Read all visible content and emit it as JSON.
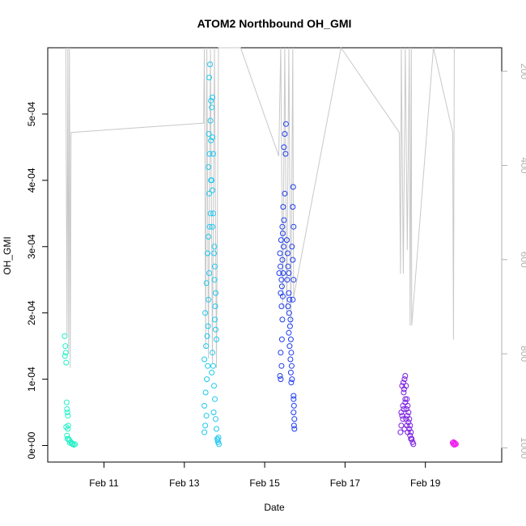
{
  "chart_data": {
    "type": "scatter",
    "title": "ATOM2 Northbound OH_GMI",
    "xlabel": "Date",
    "ylabel": "OH_GMI",
    "x_unit": "days (February)",
    "xlim": [
      9.6,
      20.9
    ],
    "ylim": [
      -2.5e-05,
      0.0006
    ],
    "x_ticks": [
      {
        "value": 11,
        "label": "Feb 11"
      },
      {
        "value": 13,
        "label": "Feb 13"
      },
      {
        "value": 15,
        "label": "Feb 15"
      },
      {
        "value": 17,
        "label": "Feb 17"
      },
      {
        "value": 19,
        "label": "Feb 19"
      }
    ],
    "y_ticks": [
      {
        "value": 0,
        "label": "0e+00"
      },
      {
        "value": 0.0001,
        "label": "1e-04"
      },
      {
        "value": 0.0002,
        "label": "2e-04"
      },
      {
        "value": 0.0003,
        "label": "3e-04"
      },
      {
        "value": 0.0004,
        "label": "4e-04"
      },
      {
        "value": 0.0005,
        "label": "5e-04"
      }
    ],
    "y2_ticks": [
      {
        "value": 200,
        "label": "200"
      },
      {
        "value": 400,
        "label": "400"
      },
      {
        "value": 600,
        "label": "600"
      },
      {
        "value": 800,
        "label": "800"
      },
      {
        "value": 1000,
        "label": "1000"
      }
    ],
    "y2lim": [
      1030,
      150
    ],
    "pressure_line_color": "#c8c8c8",
    "series": [
      {
        "color": "#22f0c8",
        "points": [
          [
            10.02,
            0.000165
          ],
          [
            10.04,
            0.00015
          ],
          [
            10.05,
            0.00014
          ],
          [
            10.06,
            0.000125
          ],
          [
            10.03,
            0.000135
          ],
          [
            10.07,
            6.5e-05
          ],
          [
            10.08,
            5.5e-05
          ],
          [
            10.09,
            5e-05
          ],
          [
            10.1,
            4.5e-05
          ],
          [
            10.11,
            3e-05
          ],
          [
            10.1,
            2.5e-05
          ],
          [
            10.08,
            1.5e-05
          ],
          [
            10.12,
            1e-05
          ],
          [
            10.14,
            8e-06
          ],
          [
            10.18,
            5e-06
          ],
          [
            10.2,
            3e-06
          ],
          [
            10.22,
            2e-06
          ],
          [
            10.25,
            1e-06
          ],
          [
            10.15,
            4e-06
          ],
          [
            10.28,
            2e-06
          ],
          [
            10.06,
            2.8e-05
          ],
          [
            10.09,
            1e-05
          ]
        ]
      },
      {
        "color": "#1ec8f0",
        "points": [
          [
            13.5,
            2e-05
          ],
          [
            13.52,
            3e-05
          ],
          [
            13.55,
            4.5e-05
          ],
          [
            13.5,
            6e-05
          ],
          [
            13.53,
            8e-05
          ],
          [
            13.56,
            0.0001
          ],
          [
            13.58,
            0.00012
          ],
          [
            13.5,
            0.00013
          ],
          [
            13.54,
            0.00015
          ],
          [
            13.57,
            0.000165
          ],
          [
            13.59,
            0.00018
          ],
          [
            13.52,
            0.0002
          ],
          [
            13.6,
            0.00022
          ],
          [
            13.55,
            0.000245
          ],
          [
            13.62,
            0.00026
          ],
          [
            13.58,
            0.00029
          ],
          [
            13.6,
            0.000315
          ],
          [
            13.63,
            0.00033
          ],
          [
            13.65,
            0.00035
          ],
          [
            13.62,
            0.00038
          ],
          [
            13.66,
            0.0004
          ],
          [
            13.6,
            0.00042
          ],
          [
            13.63,
            0.00044
          ],
          [
            13.66,
            0.00046
          ],
          [
            13.61,
            0.00047
          ],
          [
            13.65,
            0.00049
          ],
          [
            13.68,
            0.00051
          ],
          [
            13.7,
            0.000525
          ],
          [
            13.62,
            0.000555
          ],
          [
            13.64,
            0.000575
          ],
          [
            13.66,
            0.00052
          ],
          [
            13.7,
            0.000465
          ],
          [
            13.72,
            0.00044
          ],
          [
            13.68,
            0.0004
          ],
          [
            13.7,
            0.000385
          ],
          [
            13.72,
            0.00035
          ],
          [
            13.7,
            0.00033
          ],
          [
            13.75,
            0.0003
          ],
          [
            13.74,
            0.00029
          ],
          [
            13.76,
            0.00027
          ],
          [
            13.75,
            0.00025
          ],
          [
            13.78,
            0.00023
          ],
          [
            13.77,
            0.00021
          ],
          [
            13.76,
            0.00019
          ],
          [
            13.78,
            0.000175
          ],
          [
            13.8,
            0.00016
          ],
          [
            13.7,
            0.00014
          ],
          [
            13.72,
            0.00012
          ],
          [
            13.68,
            0.00011
          ],
          [
            13.74,
            9e-05
          ],
          [
            13.76,
            7e-05
          ],
          [
            13.73,
            5e-05
          ],
          [
            13.78,
            4e-05
          ],
          [
            13.8,
            2.5e-05
          ],
          [
            13.82,
            1e-05
          ],
          [
            13.84,
            5e-06
          ],
          [
            13.86,
            2e-06
          ],
          [
            13.83,
            8e-06
          ],
          [
            13.85,
            1.2e-05
          ]
        ]
      },
      {
        "color": "#1e3cf0",
        "points": [
          [
            15.38,
            0.000105
          ],
          [
            15.4,
            0.0001
          ],
          [
            15.42,
            0.00012
          ],
          [
            15.4,
            0.00014
          ],
          [
            15.43,
            0.00016
          ],
          [
            15.44,
            0.00019
          ],
          [
            15.42,
            0.00021
          ],
          [
            15.45,
            0.000225
          ],
          [
            15.43,
            0.00024
          ],
          [
            15.46,
            0.00026
          ],
          [
            15.44,
            0.00028
          ],
          [
            15.47,
            0.0003
          ],
          [
            15.45,
            0.00032
          ],
          [
            15.48,
            0.00034
          ],
          [
            15.46,
            0.00036
          ],
          [
            15.5,
            0.00038
          ],
          [
            15.52,
            0.00044
          ],
          [
            15.5,
            0.00047
          ],
          [
            15.53,
            0.000485
          ],
          [
            15.48,
            0.00045
          ],
          [
            15.55,
            0.00031
          ],
          [
            15.57,
            0.00029
          ],
          [
            15.58,
            0.00027
          ],
          [
            15.6,
            0.00026
          ],
          [
            15.56,
            0.00025
          ],
          [
            15.6,
            0.00023
          ],
          [
            15.62,
            0.00022
          ],
          [
            15.58,
            0.00021
          ],
          [
            15.61,
            0.0002
          ],
          [
            15.64,
            0.00019
          ],
          [
            15.63,
            0.00018
          ],
          [
            15.6,
            0.00017
          ],
          [
            15.65,
            0.00016
          ],
          [
            15.62,
            0.00015
          ],
          [
            15.66,
            0.00014
          ],
          [
            15.64,
            0.00013
          ],
          [
            15.67,
            0.00012
          ],
          [
            15.65,
            0.00011
          ],
          [
            15.68,
            0.0001
          ],
          [
            15.66,
            9.5e-05
          ],
          [
            15.7,
            0.00022
          ],
          [
            15.72,
            0.00025
          ],
          [
            15.7,
            0.00028
          ],
          [
            15.68,
            0.0003
          ],
          [
            15.72,
            0.00033
          ],
          [
            15.7,
            0.00036
          ],
          [
            15.71,
            0.00039
          ],
          [
            15.38,
            0.00029
          ],
          [
            15.36,
            0.00026
          ],
          [
            15.4,
            0.00023
          ],
          [
            15.42,
            0.00025
          ],
          [
            15.39,
            0.00027
          ],
          [
            15.41,
            0.00031
          ],
          [
            15.44,
            0.00033
          ],
          [
            15.72,
            7.5e-05
          ],
          [
            15.73,
            6e-05
          ],
          [
            15.72,
            5e-05
          ],
          [
            15.74,
            4e-05
          ],
          [
            15.73,
            3e-05
          ],
          [
            15.74,
            2.5e-05
          ],
          [
            15.72,
            7e-05
          ]
        ]
      },
      {
        "color": "#7a1ee0",
        "points": [
          [
            18.38,
            2e-05
          ],
          [
            18.4,
            3e-05
          ],
          [
            18.42,
            4.5e-05
          ],
          [
            18.44,
            6e-05
          ],
          [
            18.46,
            8e-05
          ],
          [
            18.48,
            0.0001
          ],
          [
            18.5,
            0.000105
          ],
          [
            18.52,
            9e-05
          ],
          [
            18.54,
            7e-05
          ],
          [
            18.56,
            6e-05
          ],
          [
            18.58,
            5e-05
          ],
          [
            18.6,
            4e-05
          ],
          [
            18.62,
            3e-05
          ],
          [
            18.64,
            2e-05
          ],
          [
            18.66,
            1e-05
          ],
          [
            18.68,
            5e-06
          ],
          [
            18.7,
            2e-06
          ],
          [
            18.44,
            4e-05
          ],
          [
            18.46,
            5.5e-05
          ],
          [
            18.5,
            7e-05
          ],
          [
            18.52,
            4e-05
          ],
          [
            18.54,
            3e-05
          ],
          [
            18.48,
            2.5e-05
          ],
          [
            18.56,
            2e-05
          ],
          [
            18.42,
            9e-05
          ],
          [
            18.45,
            9.5e-05
          ],
          [
            18.47,
            8.5e-05
          ],
          [
            18.5,
            6.5e-05
          ],
          [
            18.53,
            5.5e-05
          ],
          [
            18.55,
            4.5e-05
          ],
          [
            18.58,
            3.5e-05
          ],
          [
            18.6,
            2.5e-05
          ],
          [
            18.62,
            1.5e-05
          ],
          [
            18.64,
            1e-05
          ],
          [
            18.4,
            5e-05
          ]
        ]
      },
      {
        "color": "#f01ef0",
        "points": [
          [
            19.68,
            4e-06
          ],
          [
            19.7,
            2e-06
          ],
          [
            19.72,
            1e-06
          ],
          [
            19.74,
            3e-06
          ],
          [
            19.76,
            2e-06
          ],
          [
            19.7,
            5e-06
          ],
          [
            19.73,
            4e-06
          ]
        ]
      }
    ],
    "pressure_trace": [
      [
        10.05,
        150
      ],
      [
        10.08,
        760
      ],
      [
        10.1,
        150
      ],
      [
        10.12,
        800
      ],
      [
        10.14,
        150
      ],
      [
        10.16,
        830
      ],
      [
        10.18,
        330
      ],
      [
        13.48,
        310
      ],
      [
        13.5,
        150
      ],
      [
        13.53,
        790
      ],
      [
        13.56,
        150
      ],
      [
        13.6,
        810
      ],
      [
        13.65,
        150
      ],
      [
        13.7,
        820
      ],
      [
        13.75,
        150
      ],
      [
        13.8,
        830
      ],
      [
        13.85,
        150
      ],
      [
        14.4,
        150
      ],
      [
        15.35,
        380
      ],
      [
        15.4,
        150
      ],
      [
        15.45,
        700
      ],
      [
        15.5,
        150
      ],
      [
        15.55,
        720
      ],
      [
        15.6,
        150
      ],
      [
        15.65,
        740
      ],
      [
        15.7,
        150
      ],
      [
        15.72,
        680
      ],
      [
        16.9,
        150
      ],
      [
        18.35,
        330
      ],
      [
        18.38,
        630
      ],
      [
        18.4,
        150
      ],
      [
        18.45,
        630
      ],
      [
        18.5,
        150
      ],
      [
        18.55,
        580
      ],
      [
        18.6,
        150
      ],
      [
        18.62,
        740
      ],
      [
        18.65,
        150
      ],
      [
        18.66,
        740
      ],
      [
        19.2,
        150
      ],
      [
        19.68,
        330
      ],
      [
        19.7,
        770
      ],
      [
        19.72,
        150
      ]
    ]
  }
}
